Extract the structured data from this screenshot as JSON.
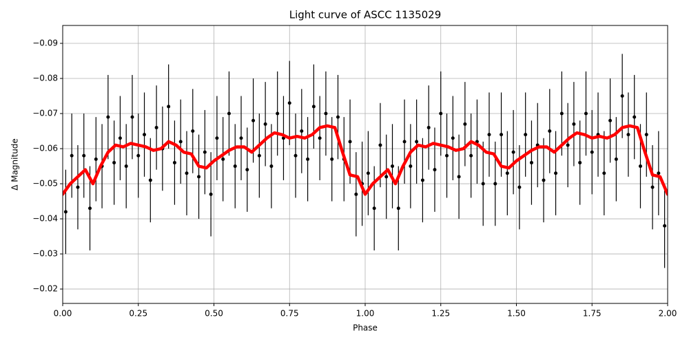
{
  "chart_data": {
    "type": "scatter",
    "title": "Light curve of ASCC 1135029",
    "xlabel": "Phase",
    "ylabel": "Δ Magnitude",
    "xlim": [
      0,
      2
    ],
    "ylim": [
      -0.0159,
      -0.0951
    ],
    "xticks": [
      {
        "value": 0,
        "label": "0.00"
      },
      0.25,
      {
        "value": 0.5,
        "label": "0.50"
      },
      0.75,
      {
        "value": 1,
        "label": "1.00"
      },
      1.25,
      {
        "value": 1.5,
        "label": "1.50"
      },
      1.75,
      {
        "value": 2,
        "label": "2.00"
      }
    ],
    "yticks": [
      {
        "value": -0.02,
        "label": "−0.02"
      },
      {
        "value": -0.03,
        "label": "−0.03"
      },
      {
        "value": -0.04,
        "label": "−0.04"
      },
      {
        "value": -0.05,
        "label": "−0.05"
      },
      {
        "value": -0.06,
        "label": "−0.06"
      },
      {
        "value": -0.07,
        "label": "−0.07"
      },
      {
        "value": -0.08,
        "label": "−0.08"
      },
      {
        "value": -0.09,
        "label": "−0.09"
      }
    ],
    "grid": true,
    "series": [
      {
        "type": "errorbar",
        "color": "#000000",
        "yerr": 0.012,
        "x": [
          0.01,
          0.03,
          0.05,
          0.07,
          0.09,
          0.11,
          0.13,
          0.15,
          0.17,
          0.19,
          0.21,
          0.23,
          0.25,
          0.27,
          0.29,
          0.31,
          0.33,
          0.35,
          0.37,
          0.39,
          0.41,
          0.43,
          0.45,
          0.47,
          0.49,
          0.51,
          0.53,
          0.55,
          0.57,
          0.59,
          0.61,
          0.63,
          0.65,
          0.67,
          0.69,
          0.71,
          0.73,
          0.75,
          0.77,
          0.79,
          0.81,
          0.83,
          0.85,
          0.87,
          0.89,
          0.91,
          0.93,
          0.95,
          0.97,
          0.99,
          1.01,
          1.03,
          1.05,
          1.07,
          1.09,
          1.11,
          1.13,
          1.15,
          1.17,
          1.19,
          1.21,
          1.23,
          1.25,
          1.27,
          1.29,
          1.31,
          1.33,
          1.35,
          1.37,
          1.39,
          1.41,
          1.43,
          1.45,
          1.47,
          1.49,
          1.51,
          1.53,
          1.55,
          1.57,
          1.59,
          1.61,
          1.63,
          1.65,
          1.67,
          1.69,
          1.71,
          1.73,
          1.75,
          1.77,
          1.79,
          1.81,
          1.83,
          1.85,
          1.87,
          1.89,
          1.91,
          1.93,
          1.95,
          1.97,
          1.99
        ],
        "values": [
          -0.042,
          -0.058,
          -0.049,
          -0.058,
          -0.043,
          -0.057,
          -0.055,
          -0.069,
          -0.056,
          -0.063,
          -0.055,
          -0.069,
          -0.058,
          -0.064,
          -0.051,
          -0.066,
          -0.06,
          -0.072,
          -0.056,
          -0.062,
          -0.053,
          -0.065,
          -0.052,
          -0.059,
          -0.047,
          -0.063,
          -0.057,
          -0.07,
          -0.055,
          -0.063,
          -0.054,
          -0.068,
          -0.058,
          -0.067,
          -0.055,
          -0.07,
          -0.063,
          -0.073,
          -0.058,
          -0.065,
          -0.057,
          -0.072,
          -0.063,
          -0.07,
          -0.057,
          -0.069,
          -0.057,
          -0.062,
          -0.047,
          -0.05,
          -0.053,
          -0.043,
          -0.061,
          -0.052,
          -0.055,
          -0.043,
          -0.062,
          -0.055,
          -0.062,
          -0.051,
          -0.066,
          -0.054,
          -0.07,
          -0.058,
          -0.063,
          -0.052,
          -0.067,
          -0.058,
          -0.062,
          -0.05,
          -0.064,
          -0.05,
          -0.064,
          -0.053,
          -0.059,
          -0.049,
          -0.064,
          -0.056,
          -0.061,
          -0.051,
          -0.065,
          -0.053,
          -0.07,
          -0.061,
          -0.067,
          -0.056,
          -0.07,
          -0.059,
          -0.064,
          -0.053,
          -0.068,
          -0.057,
          -0.075,
          -0.064,
          -0.069,
          -0.055,
          -0.064,
          -0.049,
          -0.053,
          -0.038
        ]
      },
      {
        "type": "line",
        "color": "#ff0000",
        "x": [
          0,
          0.025,
          0.05,
          0.075,
          0.1,
          0.125,
          0.15,
          0.175,
          0.2,
          0.225,
          0.25,
          0.275,
          0.3,
          0.325,
          0.35,
          0.375,
          0.4,
          0.425,
          0.45,
          0.475,
          0.5,
          0.525,
          0.55,
          0.575,
          0.6,
          0.625,
          0.65,
          0.675,
          0.7,
          0.725,
          0.75,
          0.775,
          0.8,
          0.825,
          0.85,
          0.875,
          0.9,
          0.925,
          0.95,
          0.975,
          1,
          1.025,
          1.05,
          1.075,
          1.1,
          1.125,
          1.15,
          1.175,
          1.2,
          1.225,
          1.25,
          1.275,
          1.3,
          1.325,
          1.35,
          1.375,
          1.4,
          1.425,
          1.45,
          1.475,
          1.5,
          1.525,
          1.55,
          1.575,
          1.6,
          1.625,
          1.65,
          1.675,
          1.7,
          1.725,
          1.75,
          1.775,
          1.8,
          1.825,
          1.85,
          1.875,
          1.9,
          1.925,
          1.95,
          1.975,
          2
        ],
        "values": [
          -0.047,
          -0.05,
          -0.052,
          -0.054,
          -0.05,
          -0.055,
          -0.059,
          -0.061,
          -0.0605,
          -0.0615,
          -0.061,
          -0.0605,
          -0.0595,
          -0.06,
          -0.062,
          -0.061,
          -0.059,
          -0.0585,
          -0.055,
          -0.0545,
          -0.0565,
          -0.058,
          -0.0595,
          -0.0605,
          -0.0605,
          -0.059,
          -0.061,
          -0.063,
          -0.0645,
          -0.064,
          -0.063,
          -0.0635,
          -0.063,
          -0.064,
          -0.066,
          -0.0665,
          -0.066,
          -0.059,
          -0.0525,
          -0.052,
          -0.047,
          -0.05,
          -0.052,
          -0.054,
          -0.05,
          -0.055,
          -0.059,
          -0.061,
          -0.0605,
          -0.0615,
          -0.061,
          -0.0605,
          -0.0595,
          -0.06,
          -0.062,
          -0.061,
          -0.059,
          -0.0585,
          -0.055,
          -0.0545,
          -0.0565,
          -0.058,
          -0.0595,
          -0.0605,
          -0.0605,
          -0.059,
          -0.061,
          -0.063,
          -0.0645,
          -0.064,
          -0.063,
          -0.0635,
          -0.063,
          -0.064,
          -0.066,
          -0.0665,
          -0.066,
          -0.059,
          -0.0525,
          -0.052,
          -0.047
        ]
      }
    ]
  }
}
